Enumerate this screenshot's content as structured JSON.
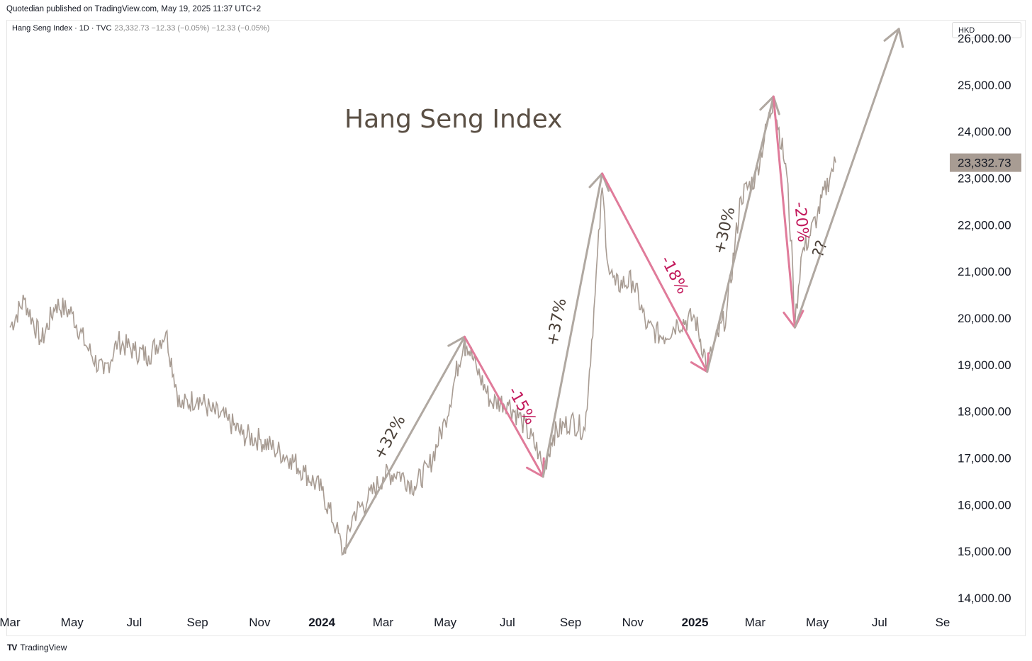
{
  "header": {
    "publisher": "Quotedian published on TradingView.com, May 19, 2025 11:37 UTC+2"
  },
  "legend": {
    "symbol": "Hang Seng Index · 1D · TVC",
    "values": "23,332.73  −12.33 (−0.05%)  −12.33 (−0.05%)"
  },
  "currency_button": "HKD",
  "footer": {
    "logo": "TV",
    "brand": "TradingView"
  },
  "colors": {
    "price_line": "#a89c93",
    "up_arrow": "#b0a8a1",
    "down_arrow": "#e07b9a",
    "down_text": "#c2185b",
    "up_text": "#4a4038",
    "price_tag": "#a89c93"
  },
  "chart_data": {
    "type": "line",
    "title": "Hang Seng Index",
    "series": [
      {
        "name": "Hang Seng Index",
        "x": [
          "2023-03-01",
          "2023-03-15",
          "2023-04-01",
          "2023-04-15",
          "2023-05-01",
          "2023-05-15",
          "2023-06-01",
          "2023-06-15",
          "2023-07-01",
          "2023-07-15",
          "2023-08-01",
          "2023-08-15",
          "2023-09-01",
          "2023-09-15",
          "2023-10-01",
          "2023-10-15",
          "2023-11-01",
          "2023-11-15",
          "2023-12-01",
          "2023-12-15",
          "2024-01-01",
          "2024-01-15",
          "2024-01-22",
          "2024-02-01",
          "2024-02-15",
          "2024-03-01",
          "2024-03-15",
          "2024-04-01",
          "2024-04-15",
          "2024-05-01",
          "2024-05-20",
          "2024-06-01",
          "2024-06-15",
          "2024-07-01",
          "2024-07-15",
          "2024-08-01",
          "2024-08-05",
          "2024-08-15",
          "2024-09-01",
          "2024-09-15",
          "2024-09-25",
          "2024-10-02",
          "2024-10-08",
          "2024-10-15",
          "2024-11-01",
          "2024-11-15",
          "2024-12-01",
          "2024-12-15",
          "2025-01-01",
          "2025-01-13",
          "2025-02-01",
          "2025-02-15",
          "2025-03-01",
          "2025-03-19",
          "2025-04-01",
          "2025-04-07",
          "2025-04-09",
          "2025-04-15",
          "2025-05-01",
          "2025-05-14",
          "2025-05-19"
        ],
        "values": [
          19800,
          20400,
          19500,
          20300,
          20100,
          19400,
          18800,
          19500,
          19300,
          19200,
          19700,
          18100,
          18300,
          18000,
          17800,
          17500,
          17400,
          17200,
          17000,
          16700,
          16300,
          15500,
          14950,
          15800,
          16100,
          16600,
          16700,
          16400,
          16800,
          17800,
          19600,
          18900,
          18200,
          18200,
          17800,
          17100,
          16700,
          17500,
          17800,
          17600,
          20500,
          22800,
          21100,
          20700,
          20800,
          19800,
          19600,
          19900,
          20000,
          19000,
          20100,
          22600,
          23000,
          24700,
          23100,
          21000,
          19850,
          21300,
          22200,
          23100,
          23332.73
        ]
      }
    ],
    "y_ticks": [
      "14,000.00",
      "15,000.00",
      "16,000.00",
      "17,000.00",
      "18,000.00",
      "19,000.00",
      "20,000.00",
      "21,000.00",
      "22,000.00",
      "23,000.00",
      "24,000.00",
      "25,000.00",
      "26,000.00"
    ],
    "x_ticks": [
      {
        "label": "Mar",
        "bold": false,
        "date": "2023-03-01"
      },
      {
        "label": "May",
        "bold": false,
        "date": "2023-05-01"
      },
      {
        "label": "Jul",
        "bold": false,
        "date": "2023-07-01"
      },
      {
        "label": "Sep",
        "bold": false,
        "date": "2023-09-01"
      },
      {
        "label": "Nov",
        "bold": false,
        "date": "2023-11-01"
      },
      {
        "label": "2024",
        "bold": true,
        "date": "2024-01-01"
      },
      {
        "label": "Mar",
        "bold": false,
        "date": "2024-03-01"
      },
      {
        "label": "May",
        "bold": false,
        "date": "2024-05-01"
      },
      {
        "label": "Jul",
        "bold": false,
        "date": "2024-07-01"
      },
      {
        "label": "Sep",
        "bold": false,
        "date": "2024-09-01"
      },
      {
        "label": "Nov",
        "bold": false,
        "date": "2024-11-01"
      },
      {
        "label": "2025",
        "bold": true,
        "date": "2025-01-01"
      },
      {
        "label": "Mar",
        "bold": false,
        "date": "2025-03-01"
      },
      {
        "label": "May",
        "bold": false,
        "date": "2025-05-01"
      },
      {
        "label": "Jul",
        "bold": false,
        "date": "2025-07-01"
      },
      {
        "label": "Se",
        "bold": false,
        "date": "2025-09-01"
      }
    ],
    "ylim": [
      14000,
      26000
    ],
    "xlim": [
      "2023-03-01",
      "2025-09-01"
    ],
    "last_price_label": "23,332.73",
    "annotations": [
      {
        "label": "+32%",
        "direction": "up",
        "from": [
          "2024-01-22",
          14950
        ],
        "to": [
          "2024-05-20",
          19600
        ]
      },
      {
        "label": "-15%",
        "direction": "down",
        "from": [
          "2024-05-20",
          19600
        ],
        "to": [
          "2024-08-05",
          16600
        ]
      },
      {
        "label": "+37%",
        "direction": "up",
        "from": [
          "2024-08-05",
          16600
        ],
        "to": [
          "2024-10-02",
          23100
        ]
      },
      {
        "label": "-18%",
        "direction": "down",
        "from": [
          "2024-10-02",
          23100
        ],
        "to": [
          "2025-01-13",
          18850
        ]
      },
      {
        "label": "+30%",
        "direction": "up",
        "from": [
          "2025-01-13",
          18850
        ],
        "to": [
          "2025-03-19",
          24750
        ]
      },
      {
        "label": "-20%",
        "direction": "down",
        "from": [
          "2025-03-19",
          24750
        ],
        "to": [
          "2025-04-09",
          19800
        ]
      },
      {
        "label": "??",
        "direction": "up",
        "from": [
          "2025-04-09",
          19800
        ],
        "to": [
          "2025-07-20",
          26200
        ]
      }
    ]
  }
}
